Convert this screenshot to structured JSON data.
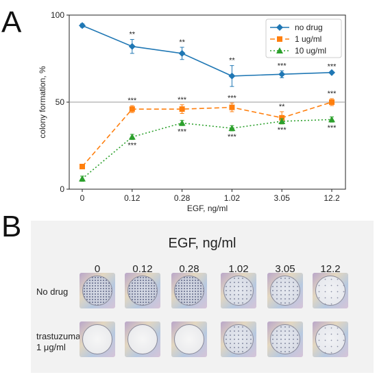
{
  "panel_a_letter": "A",
  "panel_b_letter": "B",
  "colors": {
    "no_drug": "#1f77b4",
    "ug1": "#ff7f0e",
    "ug10": "#2ca02c"
  },
  "chart_data": {
    "type": "line",
    "xlabel": "EGF, ng/ml",
    "ylabel": "colony formation, %",
    "categories": [
      "0",
      "0.12",
      "0.28",
      "1.02",
      "3.05",
      "12.2"
    ],
    "ylim": [
      0,
      100
    ],
    "yticks": [
      "0",
      "50",
      "100"
    ],
    "reference_line": 50,
    "legend_position": "top-right",
    "series": [
      {
        "name": "no drug",
        "marker": "diamond",
        "dash": "solid",
        "values": [
          94,
          82,
          78,
          65,
          66,
          67
        ],
        "errors": [
          1,
          4,
          3.5,
          6,
          2,
          0.5
        ],
        "annotations": [
          "",
          "**",
          "**",
          "**",
          "***",
          "***"
        ],
        "annotation_side": "above"
      },
      {
        "name": "1 ug/ml",
        "marker": "square",
        "dash": "dashed",
        "values": [
          13,
          46,
          46,
          47,
          41,
          50
        ],
        "errors": [
          0.5,
          2,
          2.5,
          2.5,
          3.5,
          2
        ],
        "annotations": [
          "",
          "***",
          "***",
          "***",
          "**",
          "***"
        ],
        "annotation_side": "above"
      },
      {
        "name": "10 ug/ml",
        "marker": "triangle",
        "dash": "dotted",
        "values": [
          6,
          30,
          38,
          35,
          39,
          40
        ],
        "errors": [
          1.5,
          1.5,
          1.5,
          1.5,
          1.5,
          1.5
        ],
        "annotations": [
          "",
          "***",
          "***",
          "***",
          "***",
          "***"
        ],
        "annotation_side": "below"
      }
    ]
  },
  "wells": {
    "title": "EGF, ng/ml",
    "doses": [
      "0",
      "0.12",
      "0.28",
      "1.02",
      "3.05",
      "12.2"
    ],
    "rows": [
      {
        "label_lines": [
          "No drug"
        ],
        "densities": [
          "dense",
          "dense",
          "dense",
          "medium",
          "medium",
          "sparse"
        ]
      },
      {
        "label_lines": [
          "trastuzumab,",
          "1 μg/ml"
        ],
        "densities": [
          "clear",
          "clear",
          "clear",
          "medium",
          "medium",
          "sparse"
        ]
      }
    ]
  }
}
